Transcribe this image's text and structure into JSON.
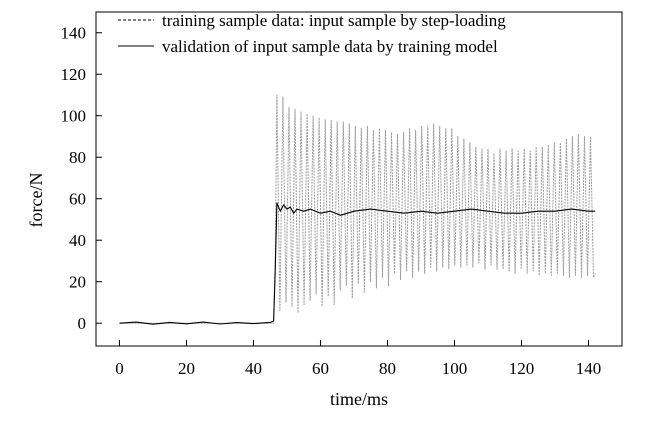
{
  "chart_data": {
    "type": "line",
    "title": "",
    "xlabel": "time/ms",
    "ylabel": "force/N",
    "xlim": [
      -7,
      150
    ],
    "ylim": [
      -11,
      150
    ],
    "xticks": [
      0,
      20,
      40,
      60,
      80,
      100,
      120,
      140
    ],
    "yticks": [
      0,
      20,
      40,
      60,
      80,
      100,
      120,
      140
    ],
    "grid": false,
    "legend_position": "top-right",
    "series": [
      {
        "name": "training sample data: input sample by step-loading",
        "style": "dashed",
        "color": "#9a9a9a",
        "x": [
          0,
          46,
          46.5,
          47.0,
          47.9,
          48.8,
          49.7,
          50.6,
          51.5,
          52.4,
          53.3,
          54.2,
          55.1,
          56.0,
          56.9,
          57.8,
          58.7,
          59.6,
          60.5,
          61.4,
          62.3,
          63.2,
          64.1,
          65.0,
          65.9,
          66.8,
          67.7,
          68.6,
          69.5,
          70.4,
          71.3,
          72.2,
          73.1,
          74.0,
          74.9,
          75.8,
          76.7,
          77.6,
          78.5,
          79.4,
          80.3,
          81.2,
          82.1,
          83.0,
          83.9,
          84.8,
          85.7,
          86.6,
          87.5,
          88.4,
          89.3,
          90.2,
          91.1,
          92.0,
          92.9,
          93.8,
          94.7,
          95.6,
          96.5,
          97.4,
          98.3,
          99.2,
          100.1,
          101.0,
          101.9,
          102.8,
          103.7,
          104.6,
          105.5,
          106.4,
          107.3,
          108.2,
          109.1,
          110.0,
          110.9,
          111.8,
          112.7,
          113.6,
          114.5,
          115.4,
          116.3,
          117.2,
          118.1,
          119.0,
          119.9,
          120.8,
          121.7,
          122.6,
          123.5,
          124.4,
          125.3,
          126.2,
          127.1,
          128.0,
          128.9,
          129.8,
          130.7,
          131.6,
          132.5,
          133.4,
          134.3,
          135.2,
          136.1,
          137.0,
          137.9,
          138.8,
          139.7,
          140.6,
          141.5,
          142.0
        ],
        "y": [
          0,
          0,
          30,
          110,
          6,
          109,
          10,
          104,
          8,
          103,
          5,
          102,
          9,
          101,
          11,
          100,
          14,
          99,
          8,
          98,
          13,
          98,
          9,
          97,
          16,
          97,
          18,
          96,
          12,
          95,
          19,
          94,
          15,
          95,
          20,
          93,
          17,
          94,
          22,
          93,
          18,
          92,
          24,
          91,
          21,
          92,
          25,
          94,
          22,
          93,
          25,
          95,
          24,
          95,
          27,
          96,
          25,
          95,
          27,
          94,
          26,
          94,
          28,
          90,
          27,
          89,
          28,
          87,
          27,
          85,
          29,
          84,
          26,
          84,
          28,
          82,
          26,
          84,
          26,
          83,
          25,
          84,
          24,
          83,
          26,
          84,
          24,
          83,
          25,
          85,
          23,
          85,
          24,
          86,
          23,
          87,
          24,
          87,
          23,
          89,
          22,
          90,
          23,
          91,
          22,
          90,
          23,
          90,
          22,
          24
        ]
      },
      {
        "name": "validation of input sample data by training model",
        "style": "solid",
        "color": "#000000",
        "x": [
          0,
          5,
          10,
          15,
          20,
          25,
          30,
          35,
          40,
          45,
          46,
          46.5,
          47,
          48,
          49,
          50,
          51,
          52,
          53,
          55,
          57,
          60,
          63,
          66,
          70,
          75,
          80,
          85,
          90,
          95,
          100,
          105,
          110,
          115,
          120,
          125,
          130,
          135,
          140,
          142
        ],
        "y": [
          0,
          0.5,
          -0.5,
          0.4,
          -0.3,
          0.5,
          -0.4,
          0.3,
          -0.2,
          0.4,
          1,
          25,
          58,
          54,
          57,
          55,
          56,
          53,
          55,
          54,
          55,
          53,
          54,
          52,
          54,
          55,
          54,
          53,
          54,
          53,
          54,
          55,
          54,
          53,
          53,
          54,
          54,
          55,
          54,
          54
        ]
      }
    ]
  }
}
